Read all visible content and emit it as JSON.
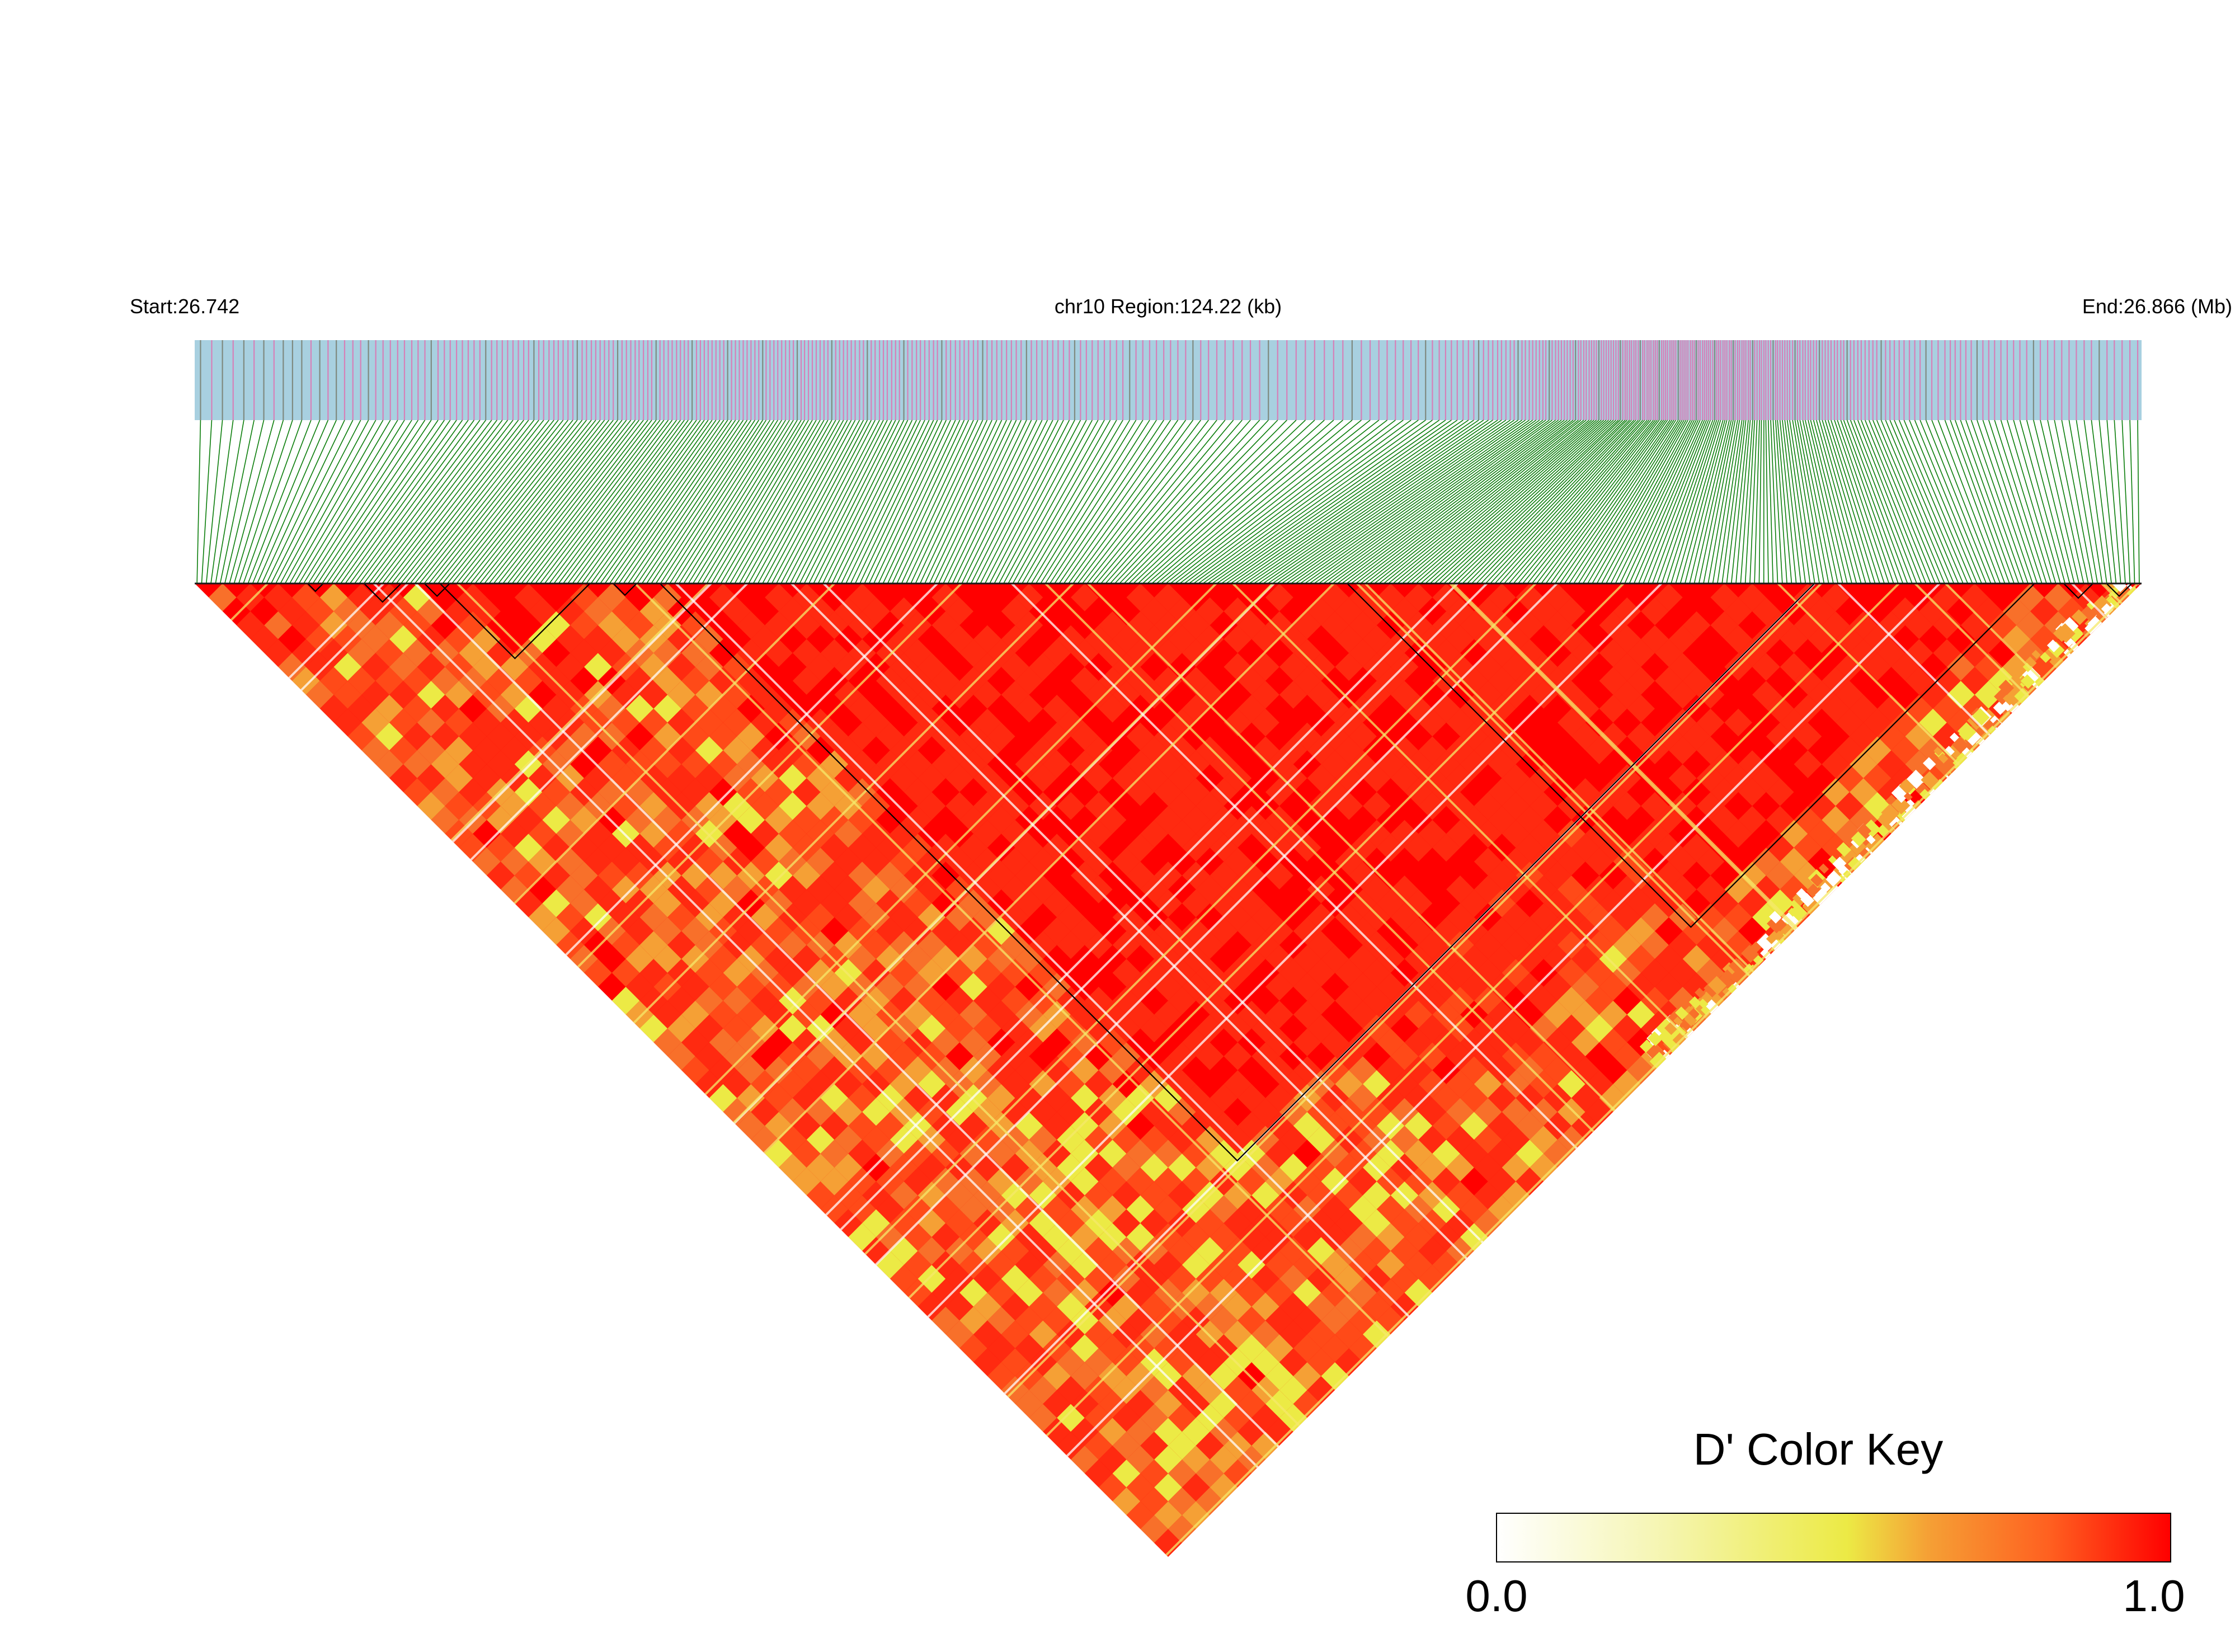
{
  "chart_data": {
    "type": "heatmap",
    "subtype": "linkage-disequilibrium-triangle",
    "header": {
      "start_label": "Start:26.742",
      "region_label": "chr10 Region:124.22 (kb)",
      "end_label": "End:26.866 (Mb)"
    },
    "region": {
      "chromosome": "chr10",
      "start_mb": 26.742,
      "end_mb": 26.866,
      "length_kb": 124.22
    },
    "color_key": {
      "title": "D' Color Key",
      "min_label": "0.0",
      "max_label": "1.0",
      "range": [
        0.0,
        1.0
      ],
      "colors": [
        "#ffffff",
        "#f5f5b0",
        "#ecea45",
        "#f5a035",
        "#ff6020",
        "#ff0000"
      ]
    },
    "colors": {
      "snp_bar_background": "#a8d0e0",
      "snp_tick_a": "#d680b8",
      "snp_tick_b": "#7f8a80",
      "connector_lines": "#0a7d0a",
      "heatmap_high": "#ff0000",
      "block_outline": "#000000"
    },
    "ld_blocks": [
      {
        "start_fraction": 0.058,
        "end_fraction": 0.066
      },
      {
        "start_fraction": 0.087,
        "end_fraction": 0.106
      },
      {
        "start_fraction": 0.118,
        "end_fraction": 0.131
      },
      {
        "start_fraction": 0.126,
        "end_fraction": 0.203
      },
      {
        "start_fraction": 0.215,
        "end_fraction": 0.227
      },
      {
        "start_fraction": 0.239,
        "end_fraction": 0.832
      },
      {
        "start_fraction": 0.592,
        "end_fraction": 0.945
      },
      {
        "start_fraction": 0.96,
        "end_fraction": 0.975
      },
      {
        "start_fraction": 0.982,
        "end_fraction": 0.995
      }
    ],
    "snp_count_estimate": 420,
    "snp_density_profile": "sparse at left, dense in the center-right (hotspot near 0.77 of region), sparse at far right"
  }
}
